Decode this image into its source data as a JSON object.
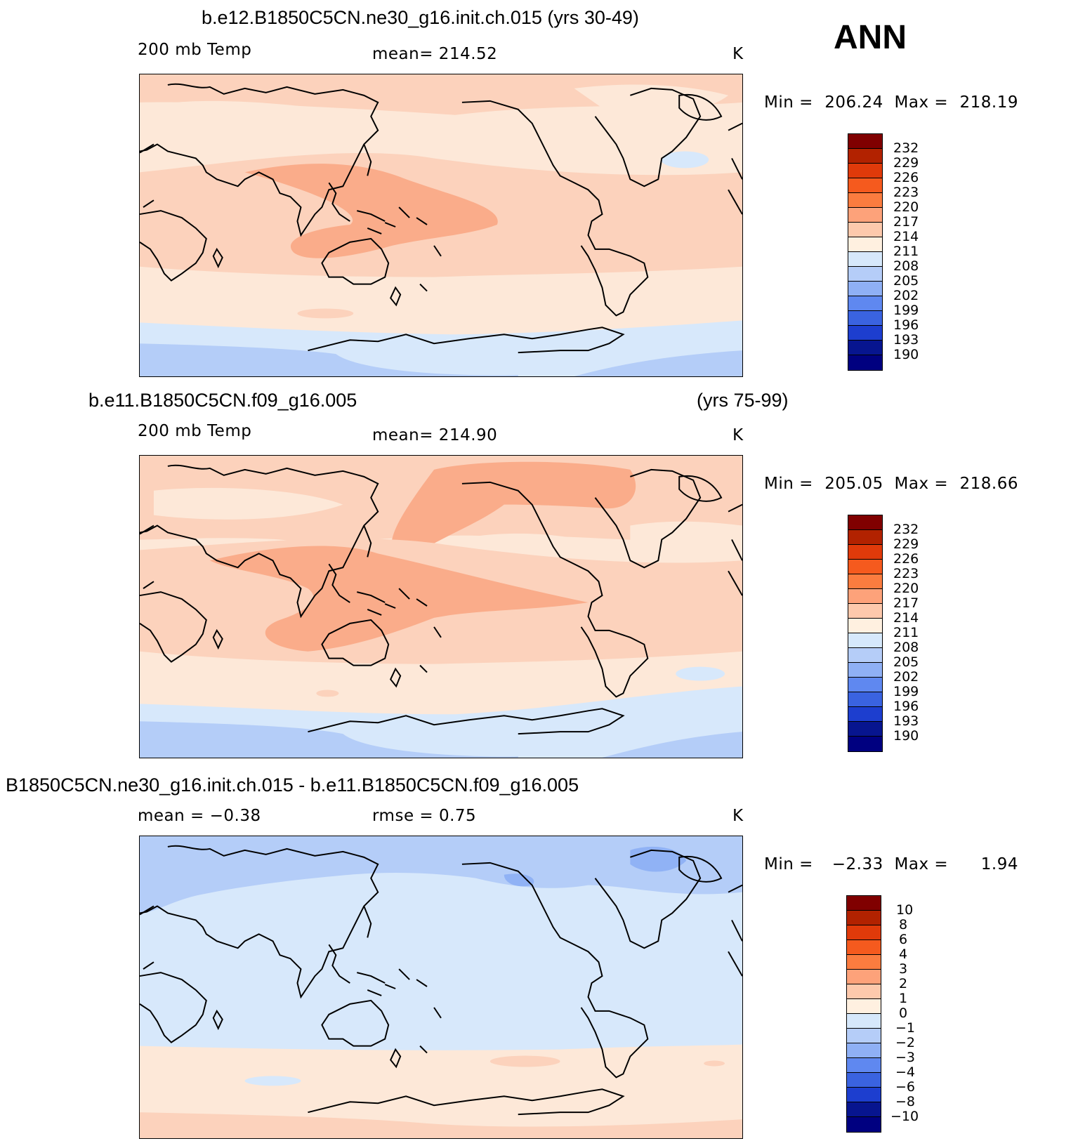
{
  "case_label": "ANN",
  "panels": [
    {
      "title": "b.e12.B1850C5CN.ne30_g16.init.ch.015 (yrs 30-49)",
      "title_right": "",
      "left_label": "200 mb Temp",
      "center_label": "mean=  214.52",
      "units": "K",
      "min_label": "Min  =",
      "min_value": "206.24",
      "max_label": "Max  =",
      "max_value": "218.19",
      "palette": "abs",
      "levels": [
        "232",
        "229",
        "226",
        "223",
        "220",
        "217",
        "214",
        "211",
        "208",
        "205",
        "202",
        "199",
        "196",
        "193",
        "190"
      ]
    },
    {
      "title": "b.e11.B1850C5CN.f09_g16.005",
      "title_right": "(yrs 75-99)",
      "left_label": "200 mb Temp",
      "center_label": "mean=  214.90",
      "units": "K",
      "min_label": "Min  =",
      "min_value": "205.05",
      "max_label": "Max  =",
      "max_value": "218.66",
      "palette": "abs",
      "levels": [
        "232",
        "229",
        "226",
        "223",
        "220",
        "217",
        "214",
        "211",
        "208",
        "205",
        "202",
        "199",
        "196",
        "193",
        "190"
      ]
    },
    {
      "title": "B1850C5CN.ne30_g16.init.ch.015 - b.e11.B1850C5CN.f09_g16.005",
      "title_right": "",
      "left_label": "mean =   −0.38",
      "center_label": "rmse =     0.75",
      "units": "K",
      "min_label": "Min  =",
      "min_value": "−2.33",
      "max_label": "Max  =",
      "max_value": "1.94",
      "palette": "diff",
      "levels": [
        "10",
        "8",
        "6",
        "4",
        "3",
        "2",
        "1",
        "0",
        "−1",
        "−2",
        "−3",
        "−4",
        "−6",
        "−8",
        "−10"
      ]
    }
  ],
  "colors": {
    "label_bar": [
      "#800000",
      "#b22200",
      "#e03a0a",
      "#f55a1e",
      "#fb7c3f",
      "#fda27a",
      "#fdc9ac",
      "#fff0e0",
      "#d6e8fb",
      "#b5cdf8",
      "#8fb0f5",
      "#5f88f0",
      "#3a63e0",
      "#1d3ecf",
      "#07158f",
      "#000080"
    ],
    "t211_214": "#fde8d8",
    "t214_217": "#fcd2bc",
    "t217_220": "#faac8a",
    "t208_211": "#d7e8fb",
    "t205_208": "#b4cdf8",
    "d0_1": "#fde8d8",
    "d1_2": "#fcd2bc",
    "dm1_0": "#d7e8fb",
    "dm2_m1": "#b4cdf8",
    "dm3_m2": "#90b2f5",
    "coast": "#000000"
  },
  "map_data": {
    "projection": "cylindrical equidistant, centered on 180°",
    "fields": [
      "annual mean 200 mb temperature (K), case 1",
      "annual mean 200 mb temperature (K), case 2",
      "difference case 1 - case 2 (K)"
    ]
  }
}
